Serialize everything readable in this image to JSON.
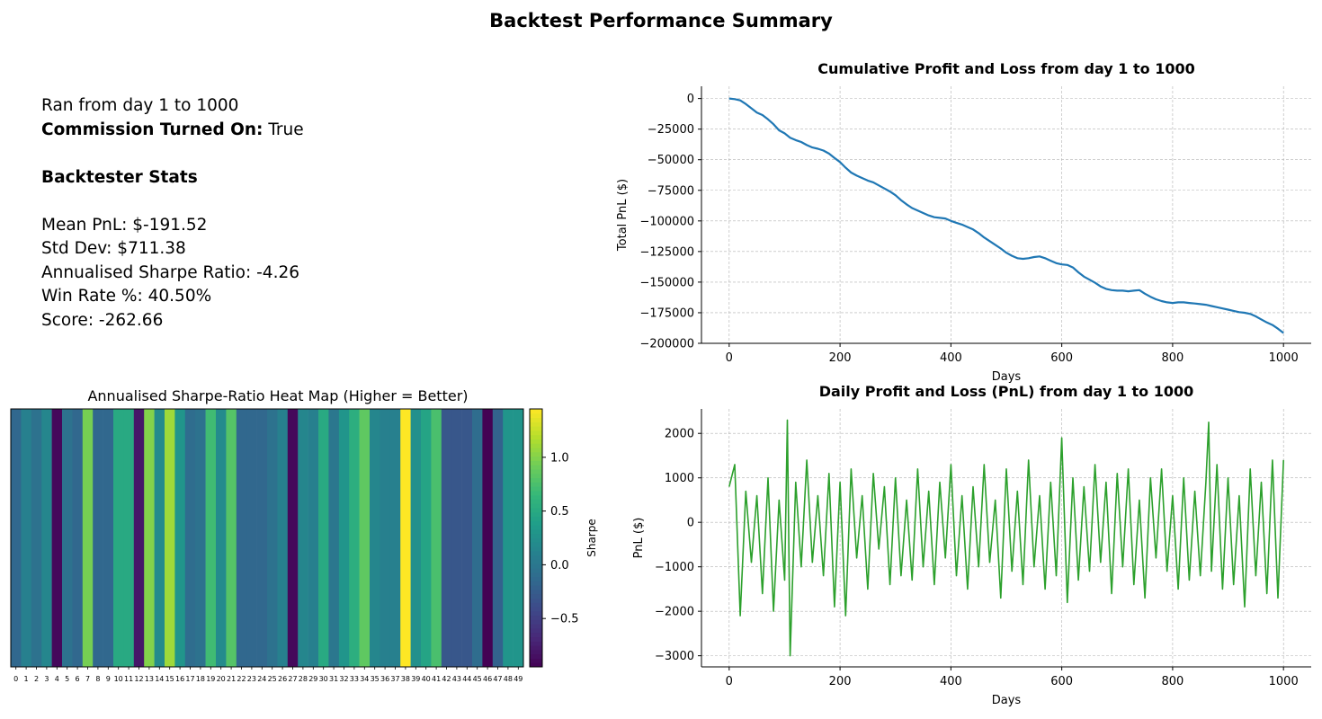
{
  "page": {
    "title": "Backtest Performance Summary"
  },
  "stats": {
    "ran_line": "Ran from day 1 to 1000",
    "commission_label": "Commission Turned On",
    "commission_sep": ":",
    "commission_value": "True",
    "section_title": "Backtester Stats",
    "mean_pnl": "Mean PnL: $-191.52",
    "std_dev": "Std Dev: $711.38",
    "sharpe": "Annualised Sharpe Ratio: -4.26",
    "win_rate": "Win Rate %: 40.50%",
    "score": "Score: -262.66"
  },
  "colors": {
    "cumulative_line": "#1f77b4",
    "daily_line": "#2ca02c",
    "grid": "#b0b0b0"
  },
  "chart_data": [
    {
      "type": "line",
      "title": "Cumulative Profit and Loss from day 1 to 1000",
      "xlabel": "Days",
      "ylabel": "Total PnL ($)",
      "xlim": [
        -50,
        1050
      ],
      "ylim": [
        -200000,
        10000
      ],
      "xticks": [
        0,
        200,
        400,
        600,
        800,
        1000
      ],
      "yticks": [
        0,
        -25000,
        -50000,
        -75000,
        -100000,
        -125000,
        -150000,
        -175000,
        -200000
      ],
      "ytick_labels": [
        "0",
        "−25000",
        "−50000",
        "−75000",
        "−100000",
        "−125000",
        "−150000",
        "−175000",
        "−200000"
      ],
      "grid": true,
      "series": [
        {
          "x": [
            0,
            10,
            20,
            30,
            40,
            50,
            60,
            70,
            80,
            90,
            100,
            110,
            120,
            130,
            140,
            150,
            160,
            170,
            180,
            190,
            200,
            210,
            220,
            230,
            240,
            250,
            260,
            270,
            280,
            290,
            300,
            310,
            320,
            330,
            340,
            350,
            360,
            370,
            380,
            390,
            400,
            410,
            420,
            430,
            440,
            450,
            460,
            470,
            480,
            490,
            500,
            510,
            520,
            530,
            540,
            550,
            560,
            570,
            580,
            590,
            600,
            610,
            620,
            630,
            640,
            650,
            660,
            670,
            680,
            690,
            700,
            710,
            720,
            730,
            740,
            750,
            760,
            770,
            780,
            790,
            800,
            810,
            820,
            830,
            840,
            850,
            860,
            870,
            880,
            890,
            900,
            910,
            920,
            930,
            940,
            950,
            960,
            970,
            980,
            990,
            1000
          ],
          "y": [
            0,
            -500,
            -1500,
            -4500,
            -8000,
            -11500,
            -13500,
            -17000,
            -21000,
            -26000,
            -28500,
            -32000,
            -34000,
            -35500,
            -38000,
            -40000,
            -41000,
            -42500,
            -45000,
            -48500,
            -52000,
            -56500,
            -60500,
            -63000,
            -65000,
            -67000,
            -68500,
            -71000,
            -73500,
            -76000,
            -79000,
            -83000,
            -86500,
            -89500,
            -91500,
            -93500,
            -95500,
            -97000,
            -97500,
            -98000,
            -100000,
            -101500,
            -103000,
            -105000,
            -107000,
            -110000,
            -113500,
            -116500,
            -119500,
            -122500,
            -126000,
            -128500,
            -130500,
            -131000,
            -130500,
            -129500,
            -129000,
            -130500,
            -132500,
            -134500,
            -135500,
            -136000,
            -138000,
            -142000,
            -145500,
            -148000,
            -150500,
            -153500,
            -155500,
            -156500,
            -157000,
            -157000,
            -157500,
            -157000,
            -156500,
            -159500,
            -162000,
            -164000,
            -165500,
            -166500,
            -167000,
            -166500,
            -166500,
            -167000,
            -167500,
            -168000,
            -168500,
            -169500,
            -170500,
            -171500,
            -172500,
            -173500,
            -174500,
            -175000,
            -176000,
            -178000,
            -180500,
            -183000,
            -185000,
            -188000,
            -191520
          ]
        }
      ]
    },
    {
      "type": "heatmap",
      "title": "Annualised Sharpe-Ratio Heat Map (Higher = Better)",
      "categories": [
        "0",
        "1",
        "2",
        "3",
        "4",
        "5",
        "6",
        "7",
        "8",
        "9",
        "10",
        "11",
        "12",
        "13",
        "14",
        "15",
        "16",
        "17",
        "18",
        "19",
        "20",
        "21",
        "22",
        "23",
        "24",
        "25",
        "26",
        "27",
        "28",
        "29",
        "30",
        "31",
        "32",
        "33",
        "34",
        "35",
        "36",
        "37",
        "38",
        "39",
        "40",
        "41",
        "42",
        "43",
        "44",
        "45",
        "46",
        "47",
        "48",
        "49"
      ],
      "values": [
        -0.15,
        0.1,
        -0.05,
        0.15,
        -0.9,
        -0.05,
        -0.15,
        0.95,
        -0.15,
        -0.15,
        0.5,
        0.5,
        -0.8,
        1.0,
        0.2,
        1.1,
        0.3,
        -0.1,
        -0.05,
        0.7,
        0.2,
        0.8,
        -0.15,
        -0.15,
        -0.15,
        -0.05,
        0.1,
        -0.9,
        0.15,
        0.1,
        0.5,
        0.0,
        0.3,
        0.55,
        0.85,
        0.15,
        0.1,
        0.1,
        1.45,
        0.25,
        0.45,
        0.75,
        -0.3,
        -0.3,
        -0.3,
        -0.1,
        -1.0,
        -0.2,
        0.3,
        0.3
      ],
      "colorbar_label": "Sharpe",
      "colorbar_range": [
        -0.95,
        1.45
      ],
      "colorbar_ticks": [
        1.0,
        0.5,
        0.0,
        -0.5
      ],
      "colorbar_tick_labels": [
        "1.0",
        "0.5",
        "0.0",
        "−0.5"
      ],
      "colormap": "viridis"
    },
    {
      "type": "line",
      "title": "Daily Profit and Loss (PnL) from day 1 to 1000",
      "xlabel": "Days",
      "ylabel": "PnL ($)",
      "xlim": [
        -50,
        1050
      ],
      "ylim": [
        -3250,
        2550
      ],
      "xticks": [
        0,
        200,
        400,
        600,
        800,
        1000
      ],
      "yticks": [
        2000,
        1000,
        0,
        -1000,
        -2000,
        -3000
      ],
      "ytick_labels": [
        "2000",
        "1000",
        "0",
        "−1000",
        "−2000",
        "−3000"
      ],
      "grid": true,
      "series": [
        {
          "x": [
            0,
            10,
            20,
            30,
            40,
            50,
            60,
            70,
            80,
            90,
            100,
            105,
            110,
            120,
            130,
            140,
            150,
            160,
            170,
            180,
            190,
            200,
            210,
            220,
            230,
            240,
            250,
            260,
            270,
            280,
            290,
            300,
            310,
            320,
            330,
            340,
            350,
            360,
            370,
            380,
            390,
            400,
            410,
            420,
            430,
            440,
            450,
            460,
            470,
            480,
            490,
            500,
            510,
            520,
            530,
            540,
            550,
            560,
            570,
            580,
            590,
            600,
            610,
            620,
            630,
            640,
            650,
            660,
            670,
            680,
            690,
            700,
            710,
            720,
            730,
            740,
            750,
            760,
            770,
            780,
            790,
            800,
            810,
            820,
            830,
            840,
            850,
            860,
            865,
            870,
            880,
            890,
            900,
            910,
            920,
            930,
            940,
            950,
            960,
            970,
            980,
            990,
            1000
          ],
          "y": [
            800,
            1300,
            -2100,
            700,
            -900,
            600,
            -1600,
            1000,
            -2000,
            500,
            -1300,
            2300,
            -3000,
            900,
            -1000,
            1400,
            -900,
            600,
            -1200,
            1100,
            -1900,
            900,
            -2100,
            1200,
            -800,
            600,
            -1500,
            1100,
            -600,
            800,
            -1400,
            1000,
            -1200,
            500,
            -1300,
            1200,
            -1000,
            700,
            -1400,
            900,
            -800,
            1300,
            -1200,
            600,
            -1500,
            800,
            -1000,
            1300,
            -900,
            500,
            -1700,
            1200,
            -1100,
            700,
            -1400,
            1400,
            -1000,
            600,
            -1500,
            900,
            -1200,
            1900,
            -1800,
            1000,
            -1300,
            800,
            -1100,
            1300,
            -900,
            900,
            -1600,
            1100,
            -1000,
            1200,
            -1400,
            500,
            -1700,
            1000,
            -800,
            1200,
            -1100,
            600,
            -1500,
            1000,
            -1300,
            700,
            -1200,
            900,
            2250,
            -1100,
            1300,
            -1500,
            1000,
            -1400,
            600,
            -1900,
            1200,
            -1200,
            900,
            -1600,
            1400,
            -1700,
            1400
          ]
        }
      ]
    }
  ]
}
